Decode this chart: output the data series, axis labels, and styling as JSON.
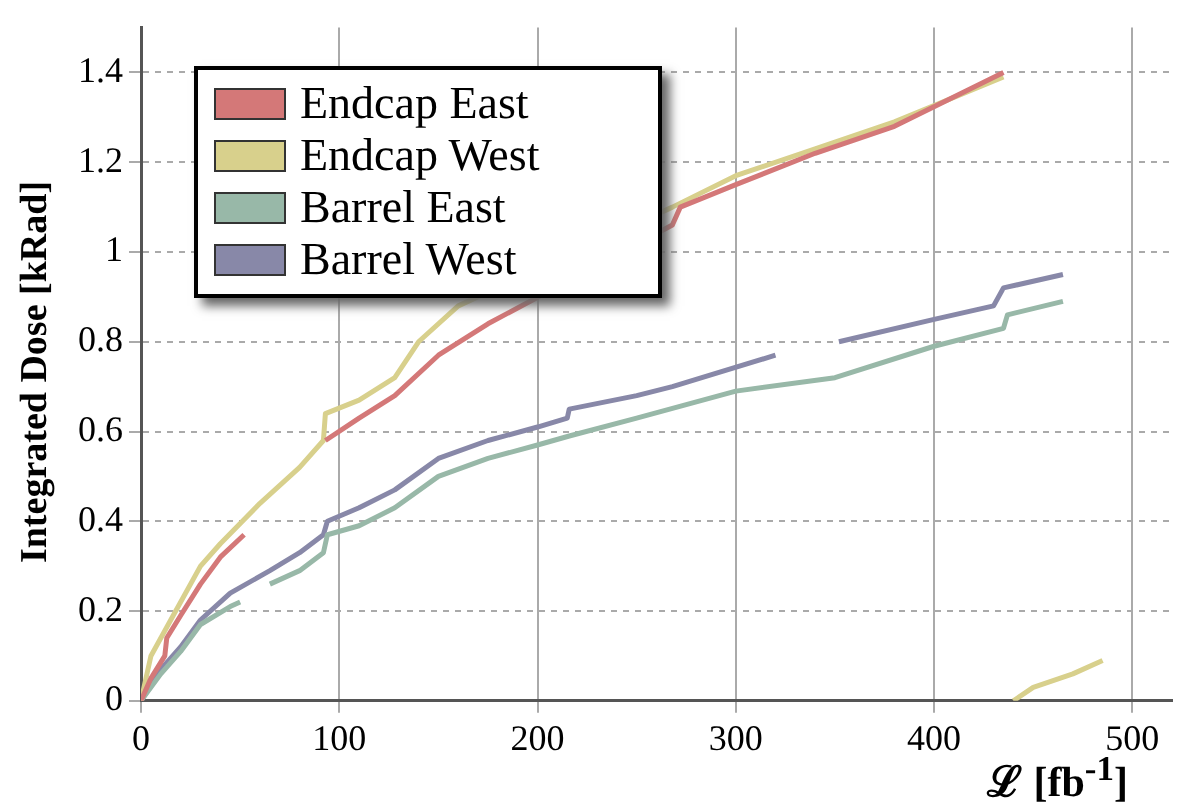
{
  "chart_data": {
    "type": "line",
    "xlabel": "ℒ [fb$^{-1}$]",
    "ylabel": "Integrated Dose [kRad]",
    "xlim": [
      0,
      520
    ],
    "xticks": [
      0,
      100,
      200,
      300,
      400,
      500
    ],
    "ylim": [
      0,
      1.5
    ],
    "yticks": [
      0,
      0.2,
      0.4,
      0.6,
      0.8,
      1,
      1.2,
      1.4
    ],
    "grid": true,
    "legend": "top left",
    "marker": "none",
    "line_style": "solid",
    "series": [
      {
        "name": "Endcap East",
        "color": "#d47878",
        "x": [
          0,
          5,
          12,
          13,
          20,
          30,
          40,
          52,
          70,
          93,
          110,
          128,
          150,
          175,
          268,
          272,
          300,
          340,
          380,
          435
        ],
        "values": [
          0,
          0.05,
          0.1,
          0.14,
          0.19,
          0.26,
          0.32,
          0.37,
          null,
          0.58,
          0.63,
          0.68,
          0.77,
          0.84,
          1.06,
          1.1,
          1.15,
          1.22,
          1.28,
          1.4
        ]
      },
      {
        "name": "Endcap West",
        "color": "#d8d08c",
        "x": [
          0,
          5,
          15,
          30,
          40,
          60,
          80,
          92,
          93,
          110,
          128,
          140,
          160,
          268,
          300,
          340,
          380,
          435,
          438,
          440,
          450,
          470,
          485
        ],
        "values": [
          0,
          0.1,
          0.18,
          0.3,
          0.35,
          0.44,
          0.52,
          0.58,
          0.64,
          0.67,
          0.72,
          0.8,
          0.88,
          1.1,
          1.17,
          1.23,
          1.29,
          1.39,
          null,
          0,
          0.03,
          0.06,
          0.09
        ]
      },
      {
        "name": "Barrel East",
        "color": "#98b8a8",
        "x": [
          0,
          10,
          20,
          30,
          45,
          50,
          58,
          65,
          80,
          92,
          94,
          110,
          128,
          150,
          175,
          200,
          216,
          250,
          300,
          350,
          400,
          435,
          437,
          465
        ],
        "values": [
          0,
          0.06,
          0.11,
          0.17,
          0.21,
          0.22,
          null,
          0.26,
          0.29,
          0.33,
          0.37,
          0.39,
          0.43,
          0.5,
          0.54,
          0.57,
          0.59,
          0.63,
          0.69,
          0.72,
          0.79,
          0.83,
          0.86,
          0.89
        ]
      },
      {
        "name": "Barrel West",
        "color": "#8888a8",
        "x": [
          0,
          10,
          20,
          30,
          45,
          65,
          80,
          92,
          94,
          110,
          128,
          150,
          175,
          200,
          215,
          216,
          250,
          268,
          320,
          336,
          352,
          400,
          430,
          435,
          465
        ],
        "values": [
          0,
          0.07,
          0.12,
          0.18,
          0.24,
          0.29,
          0.33,
          0.37,
          0.4,
          0.43,
          0.47,
          0.54,
          0.58,
          0.61,
          0.63,
          0.65,
          0.68,
          0.7,
          0.77,
          null,
          0.8,
          0.85,
          0.88,
          0.92,
          0.95
        ]
      }
    ]
  }
}
